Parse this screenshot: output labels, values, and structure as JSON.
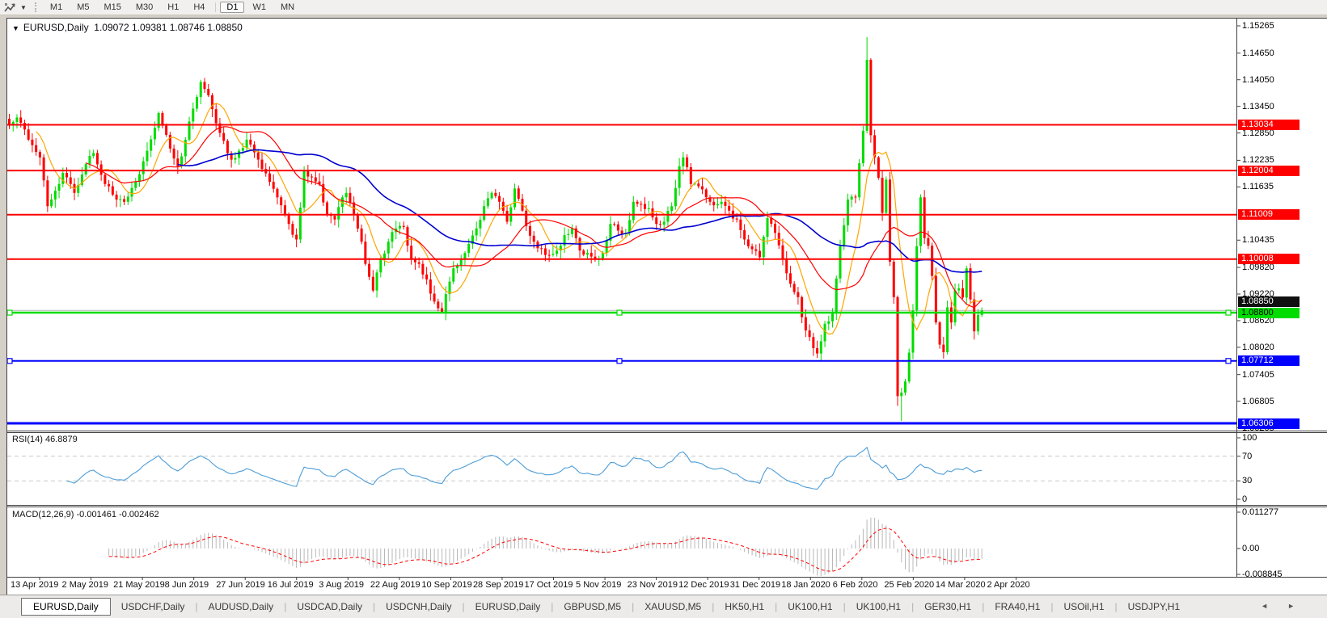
{
  "icons": {
    "dropdown": "▼",
    "caret": "▼",
    "tab_scroll_left": "◄",
    "tab_scroll_right": "►",
    "tool_icon_name": "zigzag-indicator-icon"
  },
  "toolbar": {
    "timeframes": [
      "M1",
      "M5",
      "M15",
      "M30",
      "H1",
      "H4",
      "D1",
      "W1",
      "MN"
    ],
    "active_timeframe": "D1"
  },
  "chart": {
    "title_text": "EURUSD,Daily",
    "ohlc_text": "1.09072 1.09381 1.08746 1.08850"
  },
  "chart_data": {
    "type": "candlestick",
    "symbol": "EURUSD",
    "timeframe": "Daily",
    "ohlc_display": {
      "open": "1.09072",
      "high": "1.09381",
      "low": "1.08746",
      "close": "1.08850"
    },
    "colors": {
      "bull": "#00DC00",
      "bear": "#FF0000",
      "background": "#FFFFFF",
      "border": "#404040",
      "rsi_line": "#4D9DD8",
      "macd_hist": "#B8B8B8",
      "macd_signal": "#FF0000",
      "level_dashed": "#C8C8C8"
    },
    "price_axis_ticks": [
      "1.15265",
      "1.14650",
      "1.14050",
      "1.13450",
      "1.12850",
      "1.12235",
      "1.11635",
      "1.10435",
      "1.09820",
      "1.09220",
      "1.08620",
      "1.08020",
      "1.07405",
      "1.06805",
      "1.06205"
    ],
    "hlines": [
      {
        "price": 1.13034,
        "label": "1.13034",
        "color": "#FF0000",
        "width": 2,
        "label_text_color": "#FFFFFF",
        "selected": false
      },
      {
        "price": 1.12004,
        "label": "1.12004",
        "color": "#FF0000",
        "width": 2,
        "label_text_color": "#FFFFFF",
        "selected": false
      },
      {
        "price": 1.11009,
        "label": "1.11009",
        "color": "#FF0000",
        "width": 2,
        "label_text_color": "#FFFFFF",
        "selected": false
      },
      {
        "price": 1.10008,
        "label": "1.10008",
        "color": "#FF0000",
        "width": 2,
        "label_text_color": "#FFFFFF",
        "selected": false
      },
      {
        "price": 1.088,
        "label": "1.08800",
        "color": "#00DC00",
        "width": 2.5,
        "label_text_color": "#000000",
        "selected": true
      },
      {
        "price": 1.07712,
        "label": "1.07712",
        "color": "#0000FF",
        "width": 2,
        "label_text_color": "#FFFFFF",
        "selected": true
      },
      {
        "price": 1.06306,
        "label": "1.06306",
        "color": "#0000FF",
        "width": 3,
        "label_text_color": "#FFFFFF",
        "selected": false
      }
    ],
    "bid_line": {
      "price": 1.0885,
      "label": "1.08850",
      "line_color": "#B4B4B4",
      "label_bg": "#101010",
      "label_text_color": "#FFFFFF"
    },
    "x_axis_dates": [
      "13 Apr 2019",
      "2 May 2019",
      "21 May 2019",
      "8 Jun 2019",
      "27 Jun 2019",
      "16 Jul 2019",
      "3 Aug 2019",
      "22 Aug 2019",
      "10 Sep 2019",
      "28 Sep 2019",
      "17 Oct 2019",
      "5 Nov 2019",
      "23 Nov 2019",
      "12 Dec 2019",
      "31 Dec 2019",
      "18 Jan 2020",
      "6 Feb 2020",
      "25 Feb 2020",
      "14 Mar 2020",
      "2 Apr 2020"
    ],
    "num_candles": 255,
    "close_anchors": [
      [
        0,
        1.1305
      ],
      [
        2,
        1.132
      ],
      [
        5,
        1.127
      ],
      [
        8,
        1.123
      ],
      [
        10,
        1.112
      ],
      [
        12,
        1.1155
      ],
      [
        14,
        1.1195
      ],
      [
        17,
        1.115
      ],
      [
        20,
        1.1215
      ],
      [
        22,
        1.124
      ],
      [
        25,
        1.117
      ],
      [
        28,
        1.1135
      ],
      [
        30,
        1.113
      ],
      [
        33,
        1.1175
      ],
      [
        36,
        1.1245
      ],
      [
        39,
        1.133
      ],
      [
        42,
        1.125
      ],
      [
        44,
        1.121
      ],
      [
        46,
        1.127
      ],
      [
        48,
        1.134
      ],
      [
        50,
        1.14
      ],
      [
        52,
        1.137
      ],
      [
        55,
        1.1285
      ],
      [
        58,
        1.1225
      ],
      [
        60,
        1.1245
      ],
      [
        62,
        1.127
      ],
      [
        65,
        1.1225
      ],
      [
        68,
        1.1175
      ],
      [
        70,
        1.114
      ],
      [
        73,
        1.108
      ],
      [
        75,
        1.1045
      ],
      [
        77,
        1.12
      ],
      [
        79,
        1.1185
      ],
      [
        81,
        1.117
      ],
      [
        83,
        1.11
      ],
      [
        85,
        1.109
      ],
      [
        87,
        1.114
      ],
      [
        88,
        1.115
      ],
      [
        90,
        1.11
      ],
      [
        92,
        1.104
      ],
      [
        93,
        1.099
      ],
      [
        95,
        1.093
      ],
      [
        97,
        1.1
      ],
      [
        99,
        1.104
      ],
      [
        101,
        1.107
      ],
      [
        103,
        1.1073
      ],
      [
        105,
        1.1
      ],
      [
        107,
        1.099
      ],
      [
        109,
        1.0955
      ],
      [
        111,
        1.0905
      ],
      [
        112,
        1.089
      ],
      [
        113,
        1.0882
      ],
      [
        115,
        1.095
      ],
      [
        116,
        1.098
      ],
      [
        118,
        1.1
      ],
      [
        120,
        1.1035
      ],
      [
        122,
        1.107
      ],
      [
        124,
        1.112
      ],
      [
        126,
        1.115
      ],
      [
        128,
        1.113
      ],
      [
        130,
        1.1085
      ],
      [
        132,
        1.116
      ],
      [
        134,
        1.111
      ],
      [
        135,
        1.1075
      ],
      [
        137,
        1.104
      ],
      [
        139,
        1.1025
      ],
      [
        141,
        1.101
      ],
      [
        143,
        1.102
      ],
      [
        145,
        1.1055
      ],
      [
        147,
        1.107
      ],
      [
        149,
        1.102
      ],
      [
        151,
        1.1015
      ],
      [
        153,
        1.1
      ],
      [
        155,
        1.1015
      ],
      [
        157,
        1.108
      ],
      [
        159,
        1.1065
      ],
      [
        161,
        1.106
      ],
      [
        163,
        1.113
      ],
      [
        165,
        1.1125
      ],
      [
        167,
        1.1115
      ],
      [
        169,
        1.108
      ],
      [
        171,
        1.1085
      ],
      [
        173,
        1.112
      ],
      [
        175,
        1.121
      ],
      [
        176,
        1.123
      ],
      [
        178,
        1.117
      ],
      [
        180,
        1.1165
      ],
      [
        182,
        1.114
      ],
      [
        184,
        1.1122
      ],
      [
        186,
        1.113
      ],
      [
        188,
        1.111
      ],
      [
        190,
        1.109
      ],
      [
        192,
        1.1045
      ],
      [
        194,
        1.1023
      ],
      [
        196,
        1.1005
      ],
      [
        198,
        1.1093
      ],
      [
        200,
        1.106
      ],
      [
        202,
        1.1
      ],
      [
        204,
        1.0945
      ],
      [
        206,
        1.0915
      ],
      [
        208,
        1.084
      ],
      [
        210,
        1.08
      ],
      [
        211,
        1.0788
      ],
      [
        213,
        1.0855
      ],
      [
        215,
        1.088
      ],
      [
        217,
        1.103
      ],
      [
        219,
        1.1135
      ],
      [
        221,
        1.114
      ],
      [
        223,
        1.129
      ],
      [
        224,
        1.145
      ],
      [
        225,
        1.128
      ],
      [
        226,
        1.123
      ],
      [
        227,
        1.1184
      ],
      [
        228,
        1.1105
      ],
      [
        229,
        1.118
      ],
      [
        230,
        1.0995
      ],
      [
        231,
        1.0915
      ],
      [
        232,
        1.0692
      ],
      [
        233,
        1.07
      ],
      [
        234,
        1.0725
      ],
      [
        235,
        1.079
      ],
      [
        236,
        1.0885
      ],
      [
        237,
        1.103
      ],
      [
        238,
        1.114
      ],
      [
        239,
        1.1048
      ],
      [
        240,
        1.1031
      ],
      [
        241,
        1.0963
      ],
      [
        242,
        1.0858
      ],
      [
        243,
        1.0808
      ],
      [
        244,
        1.0791
      ],
      [
        245,
        1.0892
      ],
      [
        246,
        1.0858
      ],
      [
        247,
        1.093
      ],
      [
        248,
        1.0935
      ],
      [
        249,
        1.0914
      ],
      [
        250,
        1.098
      ],
      [
        251,
        1.091
      ],
      [
        252,
        1.0838
      ],
      [
        253,
        1.0875
      ],
      [
        254,
        1.0885
      ]
    ],
    "wick_overrides": {
      "50": {
        "high": 1.1405
      },
      "95": {
        "low": 1.0926
      },
      "113": {
        "low": 1.0879
      },
      "211": {
        "low": 1.0778
      },
      "224": {
        "high": 1.1501
      },
      "232": {
        "low": 1.067
      },
      "233": {
        "low": 1.0636
      },
      "238": {
        "high": 1.1147
      }
    },
    "moving_averages": [
      {
        "window": 8,
        "color": "#FFA500",
        "width": 1.2
      },
      {
        "window": 21,
        "color": "#FF0000",
        "width": 1.2
      },
      {
        "window": 45,
        "color": "#0000D0",
        "width": 1.6
      }
    ],
    "rsi": {
      "label": "RSI(14)",
      "current": "46.8879",
      "period": 14,
      "axis_ticks": [
        "100",
        "70",
        "30",
        "0"
      ],
      "levels": [
        70,
        30
      ]
    },
    "macd": {
      "label": "MACD(12,26,9)",
      "current": "-0.001461 -0.002462",
      "fast": 12,
      "slow": 26,
      "signal": 9,
      "axis_ticks": [
        "0.011277",
        "0.00",
        "-0.008845"
      ]
    }
  },
  "tabs": {
    "active_index": 0,
    "items": [
      "EURUSD,Daily",
      "USDCHF,Daily",
      "AUDUSD,Daily",
      "USDCAD,Daily",
      "USDCNH,Daily",
      "EURUSD,Daily",
      "GBPUSD,M5",
      "XAUUSD,M5",
      "HK50,H1",
      "UK100,H1",
      "UK100,H1",
      "GER30,H1",
      "FRA40,H1",
      "USOil,H1",
      "USDJPY,H1"
    ]
  }
}
